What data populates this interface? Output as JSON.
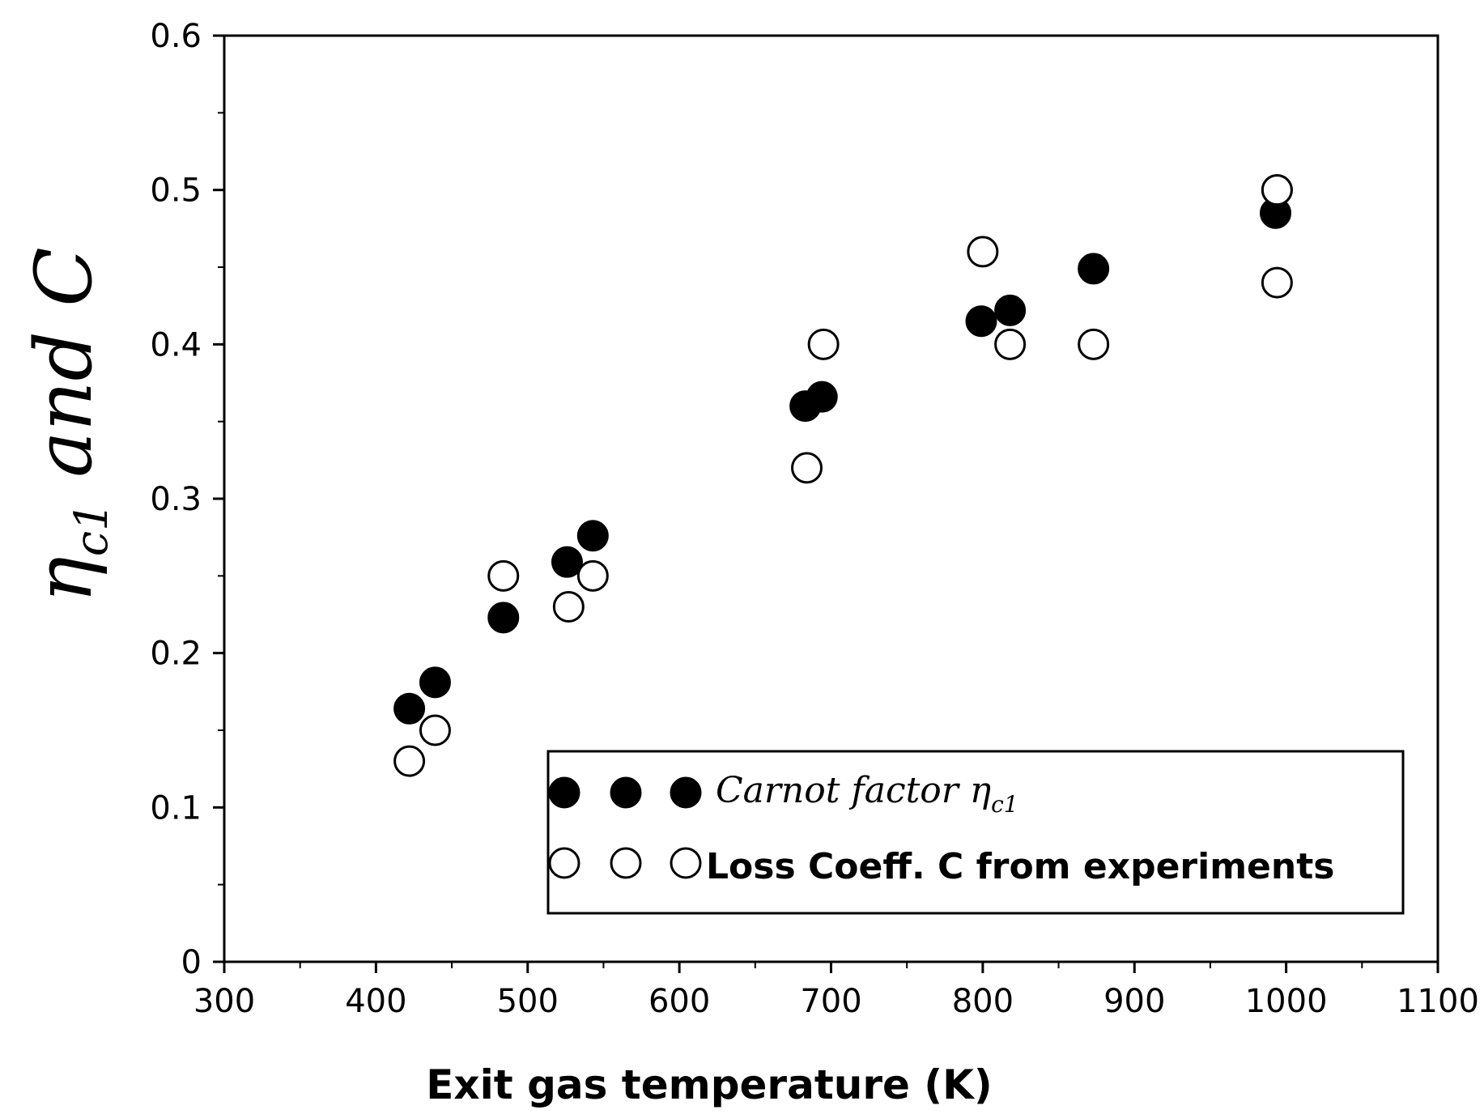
{
  "chart_data": {
    "type": "scatter",
    "title": "",
    "xlabel": "Exit gas temperature (K)",
    "ylabel": {
      "prefix": "η",
      "sub": "c1",
      "suffix": " and C"
    },
    "xlim": [
      300,
      1100
    ],
    "ylim": [
      0,
      0.6
    ],
    "xticks": [
      300,
      400,
      500,
      600,
      700,
      800,
      900,
      1000,
      1100
    ],
    "yticks": [
      0,
      0.1,
      0.2,
      0.3,
      0.4,
      0.5,
      0.6
    ],
    "xtick_labels": [
      "300",
      "400",
      "500",
      "600",
      "700",
      "800",
      "900",
      "1000",
      "1100"
    ],
    "ytick_labels": [
      "0",
      "0.1",
      "0.2",
      "0.3",
      "0.4",
      "0.5",
      "0.6"
    ],
    "legend_position": "bottom-right",
    "series": [
      {
        "name": "Carnot factor η c1",
        "label_text": "Carnot  factor η",
        "label_sub": "c1",
        "marker": "filled-circle",
        "points": [
          {
            "x": 422,
            "y": 0.164
          },
          {
            "x": 439,
            "y": 0.181
          },
          {
            "x": 484,
            "y": 0.223
          },
          {
            "x": 526,
            "y": 0.259
          },
          {
            "x": 543,
            "y": 0.276
          },
          {
            "x": 683,
            "y": 0.36
          },
          {
            "x": 694,
            "y": 0.366
          },
          {
            "x": 799,
            "y": 0.415
          },
          {
            "x": 818,
            "y": 0.422
          },
          {
            "x": 873,
            "y": 0.449
          },
          {
            "x": 993,
            "y": 0.485
          }
        ]
      },
      {
        "name": "Loss Coeff. C from experiments",
        "label_text": "Loss Coeff. C from experiments",
        "marker": "open-circle",
        "points": [
          {
            "x": 422,
            "y": 0.13
          },
          {
            "x": 439,
            "y": 0.15
          },
          {
            "x": 484,
            "y": 0.25
          },
          {
            "x": 527,
            "y": 0.23
          },
          {
            "x": 543,
            "y": 0.25
          },
          {
            "x": 684,
            "y": 0.32
          },
          {
            "x": 695,
            "y": 0.4
          },
          {
            "x": 800,
            "y": 0.46
          },
          {
            "x": 818,
            "y": 0.4
          },
          {
            "x": 873,
            "y": 0.4
          },
          {
            "x": 994,
            "y": 0.44
          },
          {
            "x": 994,
            "y": 0.5
          }
        ]
      }
    ]
  }
}
